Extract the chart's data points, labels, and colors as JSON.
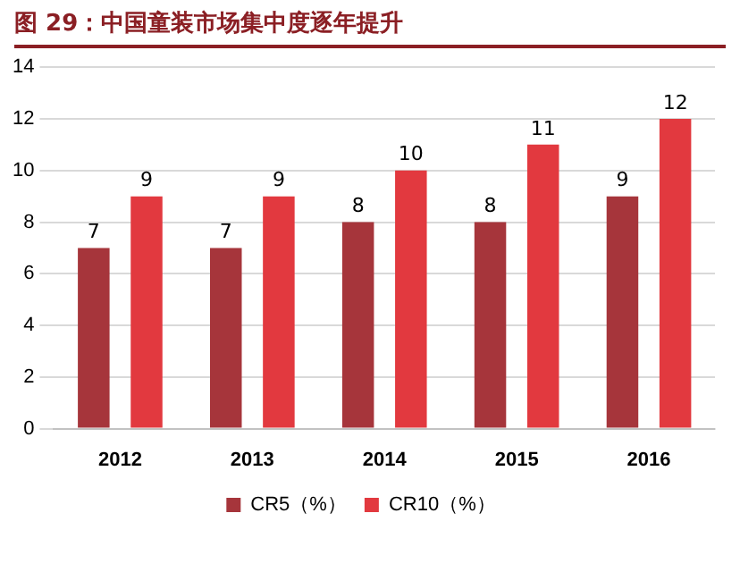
{
  "chart_data": {
    "type": "bar",
    "title": "图 29：中国童装市场集中度逐年提升",
    "categories": [
      "2012",
      "2013",
      "2014",
      "2015",
      "2016"
    ],
    "series": [
      {
        "name": "CR5（%）",
        "color": "#a6353b",
        "values": [
          7,
          7,
          8,
          8,
          9
        ]
      },
      {
        "name": "CR10（%）",
        "color": "#e2393f",
        "values": [
          9,
          9,
          10,
          11,
          12
        ]
      }
    ],
    "ylim": [
      0,
      14
    ],
    "yticks": [
      0,
      2,
      4,
      6,
      8,
      10,
      12,
      14
    ],
    "grid": "y",
    "legend": "bottom",
    "data_labels": true
  }
}
